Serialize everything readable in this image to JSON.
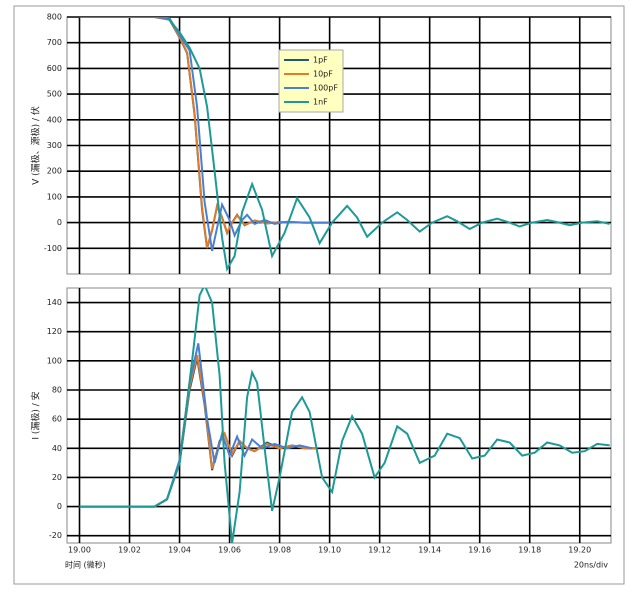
{
  "chart_data": [
    {
      "type": "line",
      "ylabel": "V (漏极、源极) / 伏",
      "xlim": [
        18.995,
        19.2125
      ],
      "ylim": [
        -200,
        800
      ],
      "yticks": [
        -100,
        0,
        100,
        200,
        300,
        400,
        500,
        600,
        700,
        800
      ],
      "grid": true,
      "legend": "upper center",
      "series": [
        {
          "name": "1pF",
          "color": "#1f5a73",
          "x": [
            19.0,
            19.03,
            19.036,
            19.04,
            19.043,
            19.046,
            19.049,
            19.051,
            19.053,
            19.055,
            19.057,
            19.059,
            19.061,
            19.063,
            19.066,
            19.07,
            19.075,
            19.08,
            19.09,
            19.1
          ],
          "values": [
            800,
            800,
            790,
            720,
            660,
            420,
            50,
            -100,
            -30,
            65,
            20,
            -40,
            0,
            30,
            -10,
            8,
            -3,
            2,
            0,
            0
          ]
        },
        {
          "name": "10pF",
          "color": "#e07b2a",
          "x": [
            19.0,
            19.03,
            19.036,
            19.04,
            19.043,
            19.046,
            19.049,
            19.051,
            19.053,
            19.055,
            19.057,
            19.059,
            19.061,
            19.063,
            19.066,
            19.07,
            19.075,
            19.08,
            19.09,
            19.1
          ],
          "values": [
            800,
            800,
            792,
            722,
            662,
            425,
            60,
            -98,
            -28,
            63,
            18,
            -38,
            0,
            28,
            -9,
            7,
            -3,
            2,
            0,
            0
          ]
        },
        {
          "name": "100pF",
          "color": "#4a7fd4",
          "x": [
            19.0,
            19.03,
            19.036,
            19.04,
            19.044,
            19.047,
            19.05,
            19.053,
            19.055,
            19.057,
            19.06,
            19.062,
            19.065,
            19.067,
            19.07,
            19.074,
            19.078,
            19.083,
            19.09,
            19.1
          ],
          "values": [
            800,
            800,
            795,
            730,
            670,
            450,
            80,
            -110,
            -20,
            70,
            10,
            -50,
            10,
            30,
            -5,
            10,
            -5,
            3,
            0,
            0
          ]
        },
        {
          "name": "1nF",
          "color": "#1e9a96",
          "x": [
            19.0,
            19.035,
            19.04,
            19.044,
            19.048,
            19.051,
            19.054,
            19.057,
            19.059,
            19.062,
            19.065,
            19.069,
            19.073,
            19.077,
            19.082,
            19.087,
            19.092,
            19.096,
            19.101,
            19.107,
            19.111,
            19.115,
            19.121,
            19.127,
            19.131,
            19.136,
            19.141,
            19.147,
            19.151,
            19.156,
            19.161,
            19.167,
            19.171,
            19.176,
            19.181,
            19.187,
            19.191,
            19.196,
            19.201,
            19.207,
            19.212
          ],
          "values": [
            800,
            800,
            740,
            680,
            600,
            450,
            200,
            -60,
            -180,
            -130,
            40,
            150,
            50,
            -130,
            -40,
            95,
            20,
            -80,
            0,
            65,
            20,
            -55,
            0,
            40,
            10,
            -35,
            0,
            25,
            5,
            -25,
            0,
            15,
            3,
            -15,
            0,
            10,
            2,
            -10,
            0,
            5,
            -5
          ]
        }
      ]
    },
    {
      "type": "line",
      "ylabel": "I (漏极) / 安",
      "xlabel": "时间 (微秒)",
      "note": "20ns/div",
      "xlim": [
        18.995,
        19.2125
      ],
      "ylim": [
        -25,
        150
      ],
      "yticks": [
        -20,
        0,
        20,
        40,
        60,
        80,
        100,
        120,
        140
      ],
      "xticks": [
        {
          "value": 19.0,
          "label": "19.00"
        },
        19.02,
        19.04,
        19.06,
        19.08,
        {
          "value": 19.1,
          "label": "19.10"
        },
        19.12,
        19.14,
        19.16,
        19.18,
        {
          "value": 19.2,
          "label": "19.20"
        }
      ],
      "grid": true,
      "series": [
        {
          "color": "#1f5a73",
          "x": [
            19.0,
            19.03,
            19.035,
            19.04,
            19.044,
            19.047,
            19.05,
            19.053,
            19.056,
            19.058,
            19.061,
            19.064,
            19.067,
            19.07,
            19.075,
            19.08,
            19.085,
            19.09,
            19.095
          ],
          "values": [
            0,
            0,
            5,
            30,
            80,
            102,
            70,
            25,
            45,
            50,
            35,
            45,
            40,
            38,
            44,
            40,
            42,
            40,
            40
          ]
        },
        {
          "color": "#e07b2a",
          "x": [
            19.0,
            19.03,
            19.035,
            19.04,
            19.044,
            19.047,
            19.05,
            19.053,
            19.056,
            19.058,
            19.061,
            19.064,
            19.067,
            19.07,
            19.075,
            19.08,
            19.085,
            19.09,
            19.095
          ],
          "values": [
            0,
            0,
            5,
            31,
            82,
            104,
            72,
            26,
            44,
            50,
            36,
            45,
            40,
            38,
            43,
            40,
            42,
            40,
            40
          ]
        },
        {
          "color": "#4a7fd4",
          "x": [
            19.0,
            19.03,
            19.035,
            19.04,
            19.044,
            19.0475,
            19.051,
            19.054,
            19.057,
            19.06,
            19.063,
            19.066,
            19.069,
            19.073,
            19.078,
            19.083,
            19.088,
            19.093
          ],
          "values": [
            0,
            0,
            5,
            32,
            85,
            112,
            60,
            30,
            50,
            35,
            48,
            35,
            46,
            40,
            43,
            40,
            42,
            40
          ]
        },
        {
          "color": "#1e9a96",
          "x": [
            19.0,
            19.03,
            19.035,
            19.04,
            19.045,
            19.048,
            19.05,
            19.053,
            19.056,
            19.058,
            19.061,
            19.064,
            19.067,
            19.069,
            19.071,
            19.074,
            19.077,
            19.08,
            19.085,
            19.089,
            19.092,
            19.097,
            19.101,
            19.105,
            19.109,
            19.113,
            19.118,
            19.122,
            19.127,
            19.131,
            19.136,
            19.142,
            19.147,
            19.152,
            19.157,
            19.162,
            19.167,
            19.172,
            19.177,
            19.182,
            19.187,
            19.192,
            19.197,
            19.202,
            19.207,
            19.212
          ],
          "values": [
            0,
            0,
            5,
            30,
            100,
            145,
            152,
            140,
            90,
            30,
            -25,
            10,
            75,
            92,
            85,
            40,
            -3,
            20,
            65,
            75,
            65,
            20,
            10,
            45,
            62,
            50,
            20,
            30,
            55,
            50,
            30,
            35,
            50,
            47,
            33,
            35,
            46,
            44,
            35,
            37,
            44,
            42,
            37,
            38,
            43,
            42
          ]
        }
      ]
    }
  ]
}
